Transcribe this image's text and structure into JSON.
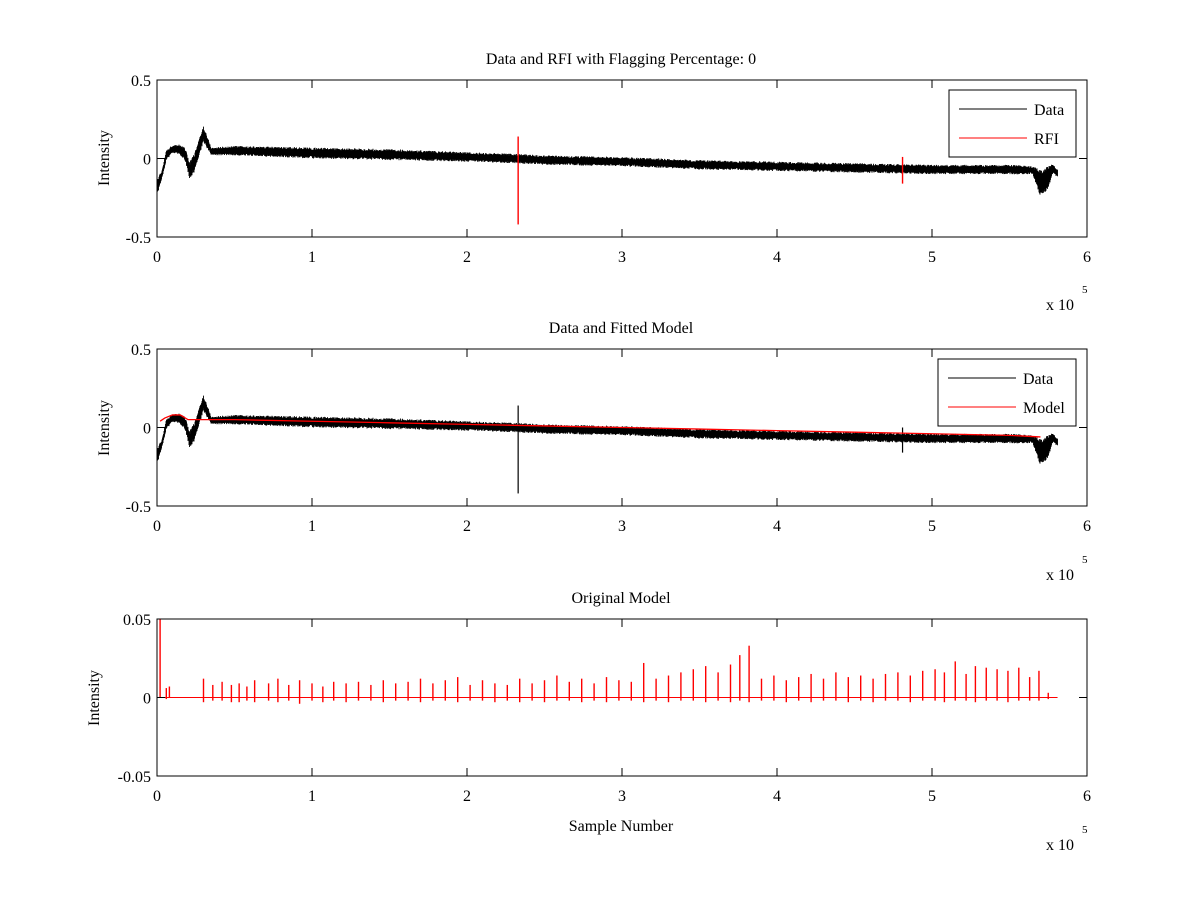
{
  "colors": {
    "background": "#ffffff",
    "data": "#000000",
    "rfi": "#ff0000",
    "axes": "#000000"
  },
  "chart_data": [
    {
      "type": "line",
      "title": "Data and RFI with Flagging Percentage: 0",
      "xlabel": "",
      "ylabel": "Intensity",
      "xlim": [
        0,
        600000
      ],
      "ylim": [
        -0.5,
        0.5
      ],
      "xticks": [
        0,
        100000,
        200000,
        300000,
        400000,
        500000,
        600000
      ],
      "xtick_labels": [
        "0",
        "1",
        "2",
        "3",
        "4",
        "5",
        "6"
      ],
      "yticks": [
        -0.5,
        0,
        0.5
      ],
      "ytick_labels": [
        "-0.5",
        "0",
        "0.5"
      ],
      "x_exponent_label": "x 10",
      "x_exponent": "5",
      "grid": false,
      "legend": {
        "placement": "top-right",
        "entries": [
          {
            "label": "Data",
            "color": "#000000"
          },
          {
            "label": "RFI",
            "color": "#ff0000"
          }
        ]
      },
      "series": [
        {
          "name": "Data",
          "color": "#000000",
          "style": "band",
          "x": [
            0,
            3000,
            6000,
            10000,
            14000,
            18000,
            21000,
            24000,
            27000,
            30000,
            35000,
            50000,
            100000,
            150000,
            200000,
            230000,
            250000,
            300000,
            350000,
            400000,
            450000,
            500000,
            550000,
            565000,
            570000,
            575000,
            578000,
            581000
          ],
          "upper": [
            -0.13,
            -0.08,
            0.05,
            0.09,
            0.09,
            0.07,
            -0.02,
            0.03,
            0.12,
            0.21,
            0.07,
            0.08,
            0.07,
            0.06,
            0.04,
            0.03,
            0.02,
            0.01,
            -0.01,
            -0.02,
            -0.03,
            -0.04,
            -0.04,
            -0.05,
            -0.07,
            -0.05,
            -0.03,
            -0.07
          ],
          "lower": [
            -0.23,
            -0.14,
            -0.01,
            0.03,
            0.03,
            -0.01,
            -0.13,
            -0.09,
            0.01,
            0.1,
            0.02,
            0.02,
            0.0,
            -0.01,
            -0.02,
            -0.03,
            -0.04,
            -0.05,
            -0.07,
            -0.08,
            -0.09,
            -0.1,
            -0.1,
            -0.1,
            -0.25,
            -0.19,
            -0.1,
            -0.12
          ]
        },
        {
          "name": "RFI",
          "color": "#ff0000",
          "style": "spikes",
          "spikes": [
            {
              "x": 233000,
              "min": -0.42,
              "max": 0.14
            },
            {
              "x": 481000,
              "min": -0.16,
              "max": 0.01
            }
          ]
        }
      ]
    },
    {
      "type": "line",
      "title": "Data and Fitted Model",
      "xlabel": "",
      "ylabel": "Intensity",
      "xlim": [
        0,
        600000
      ],
      "ylim": [
        -0.5,
        0.5
      ],
      "xticks": [
        0,
        100000,
        200000,
        300000,
        400000,
        500000,
        600000
      ],
      "xtick_labels": [
        "0",
        "1",
        "2",
        "3",
        "4",
        "5",
        "6"
      ],
      "yticks": [
        -0.5,
        0,
        0.5
      ],
      "ytick_labels": [
        "-0.5",
        "0",
        "0.5"
      ],
      "x_exponent_label": "x 10",
      "x_exponent": "5",
      "grid": false,
      "legend": {
        "placement": "top-right",
        "entries": [
          {
            "label": "Data",
            "color": "#000000"
          },
          {
            "label": "Model",
            "color": "#ff0000"
          }
        ]
      },
      "series": [
        {
          "name": "Data",
          "color": "#000000",
          "style": "band",
          "x": [
            0,
            3000,
            6000,
            10000,
            14000,
            18000,
            21000,
            24000,
            27000,
            30000,
            35000,
            50000,
            100000,
            150000,
            200000,
            230000,
            250000,
            300000,
            350000,
            400000,
            450000,
            500000,
            550000,
            565000,
            570000,
            575000,
            578000,
            581000
          ],
          "upper": [
            -0.13,
            -0.08,
            0.05,
            0.09,
            0.09,
            0.07,
            -0.02,
            0.03,
            0.12,
            0.21,
            0.07,
            0.08,
            0.07,
            0.06,
            0.04,
            0.03,
            0.02,
            0.01,
            -0.01,
            -0.02,
            -0.03,
            -0.04,
            -0.04,
            -0.05,
            -0.07,
            -0.05,
            -0.03,
            -0.07
          ],
          "lower": [
            -0.23,
            -0.14,
            -0.01,
            0.03,
            0.03,
            -0.01,
            -0.13,
            -0.09,
            0.01,
            0.1,
            0.02,
            0.02,
            0.0,
            -0.01,
            -0.02,
            -0.03,
            -0.04,
            -0.05,
            -0.07,
            -0.08,
            -0.09,
            -0.1,
            -0.1,
            -0.1,
            -0.25,
            -0.19,
            -0.1,
            -0.12
          ],
          "spikes": [
            {
              "x": 233000,
              "min": -0.42,
              "max": 0.14
            },
            {
              "x": 481000,
              "min": -0.16,
              "max": 0.0
            }
          ]
        },
        {
          "name": "Model",
          "color": "#ff0000",
          "style": "line",
          "x": [
            2000,
            5000,
            10000,
            15000,
            20000,
            30000,
            50000,
            100000,
            150000,
            200000,
            250000,
            300000,
            350000,
            400000,
            450000,
            500000,
            550000,
            570000
          ],
          "y": [
            0.04,
            0.06,
            0.08,
            0.08,
            0.05,
            0.05,
            0.05,
            0.04,
            0.03,
            0.02,
            0.01,
            0.0,
            -0.01,
            -0.02,
            -0.03,
            -0.04,
            -0.05,
            -0.06
          ]
        }
      ]
    },
    {
      "type": "line",
      "title": "Original Model",
      "xlabel": "Sample Number",
      "ylabel": "Intensity",
      "xlim": [
        0,
        600000
      ],
      "ylim": [
        -0.05,
        0.05
      ],
      "xticks": [
        0,
        100000,
        200000,
        300000,
        400000,
        500000,
        600000
      ],
      "xtick_labels": [
        "0",
        "1",
        "2",
        "3",
        "4",
        "5",
        "6"
      ],
      "yticks": [
        -0.05,
        0,
        0.05
      ],
      "ytick_labels": [
        "-0.05",
        "0",
        "0.05"
      ],
      "x_exponent_label": "x 10",
      "x_exponent": "5",
      "grid": false,
      "series": [
        {
          "name": "",
          "color": "#ff0000",
          "style": "spikes",
          "baseline_range": [
            0,
            581000
          ],
          "spikes": [
            {
              "x": 2000,
              "min": 0,
              "max": 0.05
            },
            {
              "x": 6000,
              "min": -0.001,
              "max": 0.006
            },
            {
              "x": 8000,
              "min": 0,
              "max": 0.007
            },
            {
              "x": 30000,
              "min": -0.003,
              "max": 0.012
            },
            {
              "x": 36000,
              "min": -0.002,
              "max": 0.008
            },
            {
              "x": 42000,
              "min": -0.002,
              "max": 0.01
            },
            {
              "x": 48000,
              "min": -0.003,
              "max": 0.008
            },
            {
              "x": 53000,
              "min": -0.003,
              "max": 0.009
            },
            {
              "x": 58000,
              "min": -0.002,
              "max": 0.007
            },
            {
              "x": 63000,
              "min": -0.003,
              "max": 0.011
            },
            {
              "x": 72000,
              "min": -0.002,
              "max": 0.009
            },
            {
              "x": 78000,
              "min": -0.003,
              "max": 0.012
            },
            {
              "x": 85000,
              "min": -0.002,
              "max": 0.008
            },
            {
              "x": 92000,
              "min": -0.004,
              "max": 0.011
            },
            {
              "x": 100000,
              "min": -0.002,
              "max": 0.009
            },
            {
              "x": 107000,
              "min": -0.003,
              "max": 0.007
            },
            {
              "x": 114000,
              "min": -0.002,
              "max": 0.01
            },
            {
              "x": 122000,
              "min": -0.003,
              "max": 0.009
            },
            {
              "x": 130000,
              "min": -0.002,
              "max": 0.01
            },
            {
              "x": 138000,
              "min": -0.002,
              "max": 0.008
            },
            {
              "x": 146000,
              "min": -0.003,
              "max": 0.011
            },
            {
              "x": 154000,
              "min": -0.002,
              "max": 0.009
            },
            {
              "x": 162000,
              "min": -0.002,
              "max": 0.01
            },
            {
              "x": 170000,
              "min": -0.003,
              "max": 0.012
            },
            {
              "x": 178000,
              "min": -0.002,
              "max": 0.009
            },
            {
              "x": 186000,
              "min": -0.002,
              "max": 0.011
            },
            {
              "x": 194000,
              "min": -0.003,
              "max": 0.013
            },
            {
              "x": 202000,
              "min": -0.002,
              "max": 0.008
            },
            {
              "x": 210000,
              "min": -0.002,
              "max": 0.011
            },
            {
              "x": 218000,
              "min": -0.003,
              "max": 0.009
            },
            {
              "x": 226000,
              "min": -0.002,
              "max": 0.008
            },
            {
              "x": 234000,
              "min": -0.003,
              "max": 0.012
            },
            {
              "x": 242000,
              "min": -0.002,
              "max": 0.009
            },
            {
              "x": 250000,
              "min": -0.003,
              "max": 0.011
            },
            {
              "x": 258000,
              "min": -0.002,
              "max": 0.014
            },
            {
              "x": 266000,
              "min": -0.002,
              "max": 0.01
            },
            {
              "x": 274000,
              "min": -0.003,
              "max": 0.012
            },
            {
              "x": 282000,
              "min": -0.002,
              "max": 0.009
            },
            {
              "x": 290000,
              "min": -0.003,
              "max": 0.013
            },
            {
              "x": 298000,
              "min": -0.002,
              "max": 0.011
            },
            {
              "x": 306000,
              "min": -0.002,
              "max": 0.01
            },
            {
              "x": 314000,
              "min": -0.003,
              "max": 0.022
            },
            {
              "x": 322000,
              "min": -0.002,
              "max": 0.012
            },
            {
              "x": 330000,
              "min": -0.003,
              "max": 0.014
            },
            {
              "x": 338000,
              "min": -0.002,
              "max": 0.016
            },
            {
              "x": 346000,
              "min": -0.002,
              "max": 0.018
            },
            {
              "x": 354000,
              "min": -0.003,
              "max": 0.02
            },
            {
              "x": 362000,
              "min": -0.002,
              "max": 0.016
            },
            {
              "x": 370000,
              "min": -0.003,
              "max": 0.021
            },
            {
              "x": 376000,
              "min": -0.002,
              "max": 0.027
            },
            {
              "x": 382000,
              "min": -0.003,
              "max": 0.033
            },
            {
              "x": 390000,
              "min": -0.002,
              "max": 0.012
            },
            {
              "x": 398000,
              "min": -0.002,
              "max": 0.014
            },
            {
              "x": 406000,
              "min": -0.003,
              "max": 0.011
            },
            {
              "x": 414000,
              "min": -0.002,
              "max": 0.013
            },
            {
              "x": 422000,
              "min": -0.003,
              "max": 0.015
            },
            {
              "x": 430000,
              "min": -0.002,
              "max": 0.012
            },
            {
              "x": 438000,
              "min": -0.002,
              "max": 0.016
            },
            {
              "x": 446000,
              "min": -0.003,
              "max": 0.013
            },
            {
              "x": 454000,
              "min": -0.002,
              "max": 0.014
            },
            {
              "x": 462000,
              "min": -0.003,
              "max": 0.012
            },
            {
              "x": 470000,
              "min": -0.002,
              "max": 0.015
            },
            {
              "x": 478000,
              "min": -0.002,
              "max": 0.016
            },
            {
              "x": 486000,
              "min": -0.003,
              "max": 0.014
            },
            {
              "x": 494000,
              "min": -0.002,
              "max": 0.017
            },
            {
              "x": 502000,
              "min": -0.002,
              "max": 0.018
            },
            {
              "x": 508000,
              "min": -0.003,
              "max": 0.016
            },
            {
              "x": 515000,
              "min": -0.002,
              "max": 0.023
            },
            {
              "x": 522000,
              "min": -0.002,
              "max": 0.015
            },
            {
              "x": 528000,
              "min": -0.003,
              "max": 0.02
            },
            {
              "x": 535000,
              "min": -0.002,
              "max": 0.019
            },
            {
              "x": 542000,
              "min": -0.002,
              "max": 0.018
            },
            {
              "x": 549000,
              "min": -0.003,
              "max": 0.017
            },
            {
              "x": 556000,
              "min": -0.002,
              "max": 0.019
            },
            {
              "x": 563000,
              "min": -0.002,
              "max": 0.013
            },
            {
              "x": 569000,
              "min": -0.002,
              "max": 0.017
            },
            {
              "x": 575000,
              "min": -0.001,
              "max": 0.003
            }
          ]
        }
      ]
    }
  ]
}
